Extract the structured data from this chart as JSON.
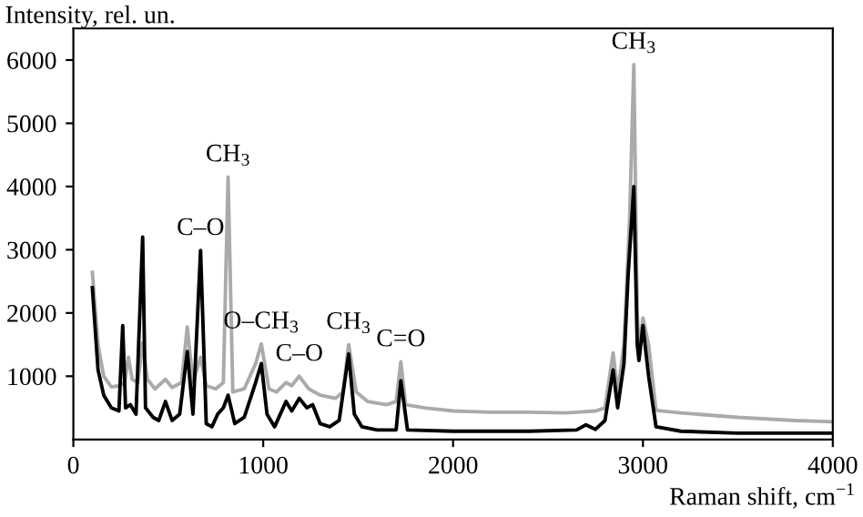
{
  "chart_data": {
    "type": "line",
    "xlabel": "Raman shift, cm$^{−1}$",
    "ylabel": "Intensity, rel. un.",
    "xlim": [
      0,
      4000
    ],
    "ylim": [
      0,
      6500
    ],
    "xticks": [
      0,
      1000,
      2000,
      3000,
      4000
    ],
    "yticks": [
      1000,
      2000,
      3000,
      4000,
      5000,
      6000
    ],
    "grid": false,
    "legend": false,
    "marker": "none",
    "line_style": "solid",
    "series": [
      {
        "color": "#aaaaaa",
        "x": [
          100,
          130,
          160,
          200,
          240,
          270,
          290,
          310,
          340,
          365,
          390,
          430,
          485,
          520,
          570,
          600,
          630,
          670,
          700,
          750,
          790,
          815,
          840,
          900,
          960,
          990,
          1030,
          1070,
          1120,
          1150,
          1190,
          1240,
          1300,
          1380,
          1420,
          1450,
          1490,
          1550,
          1650,
          1700,
          1725,
          1750,
          1850,
          2000,
          2200,
          2400,
          2600,
          2750,
          2800,
          2843,
          2867,
          2900,
          2930,
          2952,
          2970,
          2979,
          3000,
          3030,
          3069,
          3200,
          3500,
          3800,
          4000
        ],
        "values": [
          2640,
          1500,
          1000,
          830,
          850,
          900,
          1300,
          950,
          900,
          1530,
          950,
          800,
          950,
          820,
          900,
          1780,
          900,
          1300,
          850,
          800,
          900,
          4150,
          750,
          800,
          1200,
          1510,
          800,
          750,
          900,
          850,
          1000,
          800,
          700,
          650,
          750,
          1500,
          750,
          600,
          550,
          600,
          1230,
          550,
          500,
          450,
          430,
          430,
          420,
          450,
          500,
          1370,
          740,
          1500,
          3500,
          5930,
          2000,
          1390,
          1920,
          1500,
          460,
          420,
          350,
          300,
          280
        ]
      },
      {
        "color": "#000000",
        "x": [
          100,
          130,
          160,
          200,
          240,
          260,
          275,
          300,
          330,
          365,
          380,
          420,
          450,
          485,
          520,
          560,
          600,
          630,
          670,
          700,
          730,
          760,
          790,
          815,
          850,
          900,
          960,
          990,
          1020,
          1060,
          1120,
          1150,
          1190,
          1230,
          1260,
          1300,
          1350,
          1400,
          1450,
          1480,
          1520,
          1600,
          1700,
          1725,
          1760,
          2000,
          2400,
          2650,
          2700,
          2750,
          2800,
          2843,
          2867,
          2900,
          2922,
          2952,
          2970,
          2979,
          3000,
          3030,
          3069,
          3200,
          3500,
          4000
        ],
        "values": [
          2400,
          1100,
          700,
          500,
          450,
          1800,
          500,
          550,
          400,
          3200,
          500,
          350,
          300,
          600,
          300,
          400,
          1390,
          400,
          2990,
          250,
          200,
          400,
          500,
          700,
          250,
          350,
          900,
          1200,
          400,
          200,
          600,
          450,
          650,
          500,
          550,
          250,
          200,
          300,
          1350,
          400,
          200,
          150,
          150,
          930,
          150,
          130,
          130,
          150,
          230,
          160,
          300,
          1100,
          500,
          1200,
          2600,
          4000,
          1500,
          1250,
          1800,
          1000,
          200,
          130,
          100,
          100
        ]
      }
    ],
    "annotations": [
      {
        "text": "CH$_{3}$",
        "x": 815,
        "y": 4150
      },
      {
        "text": "C–O",
        "x": 670,
        "y": 2990
      },
      {
        "text": "O–CH$_{3}$",
        "x": 990,
        "y": 1510
      },
      {
        "text": "C–O",
        "x": 1190,
        "y": 1000
      },
      {
        "text": "CH$_{3}$",
        "x": 1450,
        "y": 1500
      },
      {
        "text": "C=O",
        "x": 1725,
        "y": 1230
      },
      {
        "text": "CH$_{3}$",
        "x": 2952,
        "y": 5930
      }
    ]
  }
}
